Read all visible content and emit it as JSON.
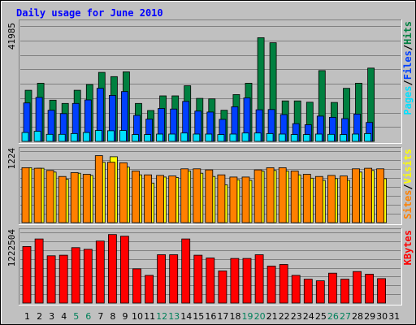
{
  "chart_data": {
    "type": "bar",
    "title": "Daily usage for June 2010",
    "categories": [
      "1",
      "2",
      "3",
      "4",
      "5",
      "6",
      "7",
      "8",
      "9",
      "10",
      "11",
      "12",
      "13",
      "14",
      "15",
      "16",
      "17",
      "18",
      "19",
      "20",
      "21",
      "22",
      "23",
      "24",
      "25",
      "26",
      "27",
      "28",
      "29",
      "30",
      "31"
    ],
    "weekend_days": [
      "5",
      "6",
      "12",
      "13",
      "19",
      "20",
      "26",
      "27"
    ],
    "grid": true,
    "panels": [
      {
        "id": "hits-files-pages",
        "ymax_label": "41985",
        "ymax": 41985,
        "legend": [
          "Pages",
          "/",
          "Files",
          "/",
          "Hits"
        ],
        "series": [
          {
            "name": "Hits",
            "color": "#008040",
            "values": [
              20200,
              23000,
              16300,
              15000,
              20200,
              22500,
              27300,
              25600,
              27500,
              15000,
              12200,
              18000,
              18000,
              22000,
              17000,
              16800,
              12300,
              18500,
              23000,
              41000,
              39000,
              16000,
              16000,
              15500,
              28000,
              15400,
              21000,
              23000,
              29000,
              0,
              0
            ]
          },
          {
            "name": "Files",
            "color": "#0040ff",
            "values": [
              15200,
              17400,
              12300,
              11000,
              15000,
              16400,
              21000,
              18200,
              19700,
              10300,
              8800,
              13000,
              12800,
              15800,
              12000,
              11600,
              8700,
              13700,
              17200,
              12500,
              12600,
              10600,
              7000,
              6600,
              10000,
              9500,
              9000,
              10800,
              7500,
              0,
              0
            ]
          },
          {
            "name": "Pages",
            "color": "#00e0ff",
            "values": [
              3500,
              4000,
              2800,
              2800,
              3100,
              3500,
              4300,
              4200,
              4300,
              2700,
              2700,
              2900,
              2900,
              3300,
              2900,
              2900,
              2700,
              2900,
              3300,
              3300,
              3100,
              2900,
              2700,
              2700,
              2900,
              2800,
              2700,
              2900,
              3100,
              0,
              0
            ]
          }
        ]
      },
      {
        "id": "visits-sites",
        "ymax_label": "1224",
        "ymax": 1224,
        "legend": [
          "Sites",
          "/",
          "Visits"
        ],
        "series": [
          {
            "name": "Visits",
            "color": "#ffff00",
            "values": [
              1000,
              990,
              920,
              790,
              900,
              860,
              1100,
              1200,
              1010,
              870,
              720,
              830,
              820,
              940,
              900,
              840,
              690,
              780,
              770,
              940,
              950,
              940,
              870,
              810,
              770,
              800,
              770,
              920,
              950,
              800,
              0
            ]
          },
          {
            "name": "Sites",
            "color": "#ff8000",
            "values": [
              1000,
              990,
              950,
              840,
              910,
              880,
              1220,
              1100,
              1090,
              940,
              870,
              860,
              850,
              980,
              980,
              960,
              870,
              830,
              830,
              960,
              1000,
              1000,
              940,
              880,
              840,
              860,
              850,
              980,
              990,
              980,
              0
            ]
          }
        ]
      },
      {
        "id": "kbytes",
        "ymax_label": "1222504",
        "ymax": 1222504,
        "legend": [
          "KBytes"
        ],
        "series": [
          {
            "name": "KBytes",
            "color": "#ff0000",
            "values": [
              1040000,
              1180000,
              870000,
              880000,
              1020000,
              990000,
              1140000,
              1260000,
              1230000,
              630000,
              510000,
              890000,
              890000,
              1180000,
              880000,
              830000,
              590000,
              820000,
              820000,
              890000,
              680000,
              710000,
              510000,
              440000,
              410000,
              550000,
              440000,
              580000,
              530000,
              450000,
              0
            ]
          }
        ]
      }
    ]
  }
}
